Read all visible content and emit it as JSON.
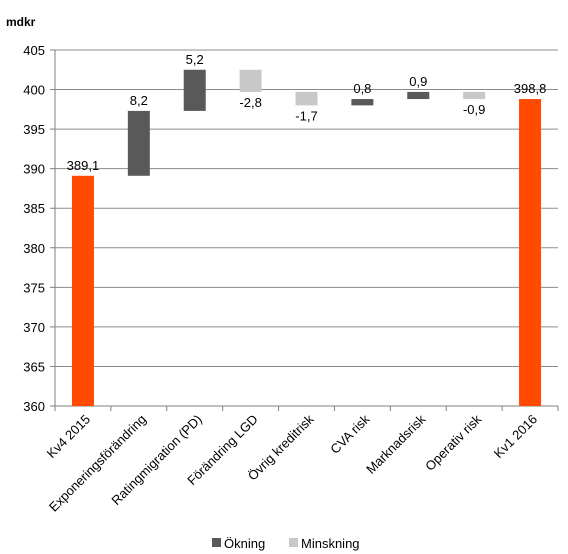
{
  "chart_data": {
    "type": "bar",
    "subtype": "waterfall",
    "unit_label": "mdkr",
    "ylim": [
      360,
      405
    ],
    "yticks": [
      360,
      365,
      370,
      375,
      380,
      385,
      390,
      395,
      400,
      405
    ],
    "grid": true,
    "legend_position": "bottom-center",
    "legend": [
      {
        "key": "increase",
        "label": "Ökning"
      },
      {
        "key": "decrease",
        "label": "Minskning"
      }
    ],
    "colors": {
      "total": "#ff4a00",
      "increase": "#595959",
      "decrease": "#c8c8c8",
      "grid": "#8c8c8c",
      "axis": "#7f7f7f"
    },
    "categories": [
      "Kv4 2015",
      "Exponeringsförändring",
      "Ratingmigration (PD)",
      "Förändring LGD",
      "Övrig kreditrisk",
      "CVA risk",
      "Marknadsrisk",
      "Operativ risk",
      "Kv1 2016"
    ],
    "bars": [
      {
        "kind": "total",
        "start": 360,
        "end": 389.1,
        "label": "389,1"
      },
      {
        "kind": "increase",
        "start": 389.1,
        "end": 397.3,
        "label": "8,2"
      },
      {
        "kind": "increase",
        "start": 397.3,
        "end": 402.5,
        "label": "5,2"
      },
      {
        "kind": "decrease",
        "start": 402.5,
        "end": 399.7,
        "label": "-2,8"
      },
      {
        "kind": "decrease",
        "start": 399.7,
        "end": 398.0,
        "label": "-1,7"
      },
      {
        "kind": "increase",
        "start": 398.0,
        "end": 398.8,
        "label": "0,8"
      },
      {
        "kind": "increase",
        "start": 398.8,
        "end": 399.7,
        "label": "0,9"
      },
      {
        "kind": "decrease",
        "start": 399.7,
        "end": 398.8,
        "label": "-0,9"
      },
      {
        "kind": "total",
        "start": 360,
        "end": 398.8,
        "label": "398,8"
      }
    ]
  }
}
